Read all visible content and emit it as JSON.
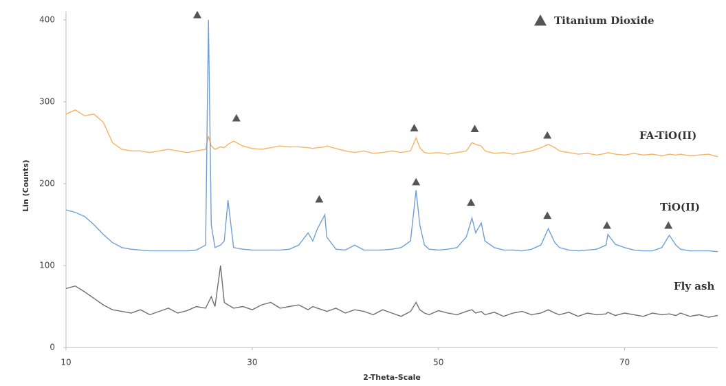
{
  "chart_data": {
    "type": "line",
    "x_label": "2-Theta-Scale",
    "y_label": "Lin (Counts)",
    "x": [
      10,
      11,
      12,
      13,
      14,
      15,
      16,
      17,
      18,
      19,
      20,
      21,
      22,
      23,
      24,
      25,
      25.3,
      25.6,
      26,
      26.6,
      27,
      27.4,
      28,
      29,
      30,
      31,
      32,
      33,
      34,
      35,
      36,
      36.5,
      37,
      37.8,
      38,
      39,
      40,
      41,
      42,
      43,
      44,
      45,
      46,
      47,
      47.6,
      48,
      48.5,
      49,
      50,
      51,
      52,
      53,
      53.6,
      54,
      54.6,
      55,
      56,
      57,
      58,
      59,
      60,
      61,
      61.8,
      62.5,
      63,
      64,
      65,
      66,
      67,
      68,
      68.2,
      69,
      70,
      71,
      72,
      73,
      74,
      74.8,
      75.5,
      76,
      77,
      78,
      79,
      80
    ],
    "series": [
      {
        "name": "FA-TiO(II)",
        "color": "#f5b560",
        "values": [
          285,
          290,
          283,
          285,
          275,
          250,
          242,
          240,
          240,
          238,
          240,
          242,
          240,
          238,
          240,
          242,
          258,
          246,
          242,
          245,
          244,
          248,
          252,
          246,
          243,
          242,
          244,
          246,
          245,
          245,
          244,
          243,
          244,
          245,
          246,
          243,
          240,
          238,
          240,
          237,
          238,
          240,
          238,
          240,
          256,
          244,
          238,
          237,
          238,
          236,
          238,
          240,
          250,
          248,
          246,
          240,
          237,
          238,
          236,
          238,
          240,
          244,
          248,
          244,
          240,
          238,
          236,
          237,
          235,
          237,
          238,
          236,
          235,
          237,
          235,
          236,
          234,
          236,
          235,
          236,
          234,
          235,
          236,
          233
        ]
      },
      {
        "name": "TiO(II)",
        "color": "#6f9fd4",
        "values": [
          168,
          165,
          160,
          150,
          138,
          128,
          122,
          120,
          119,
          118,
          118,
          118,
          118,
          118,
          119,
          125,
          400,
          150,
          122,
          125,
          130,
          180,
          122,
          120,
          119,
          119,
          119,
          119,
          120,
          125,
          140,
          130,
          145,
          162,
          135,
          120,
          119,
          125,
          119,
          119,
          119,
          120,
          122,
          130,
          192,
          150,
          125,
          120,
          119,
          120,
          122,
          135,
          158,
          140,
          152,
          130,
          122,
          119,
          119,
          118,
          120,
          125,
          145,
          128,
          122,
          119,
          118,
          119,
          120,
          125,
          138,
          126,
          122,
          119,
          118,
          118,
          122,
          137,
          125,
          120,
          118,
          118,
          118,
          117
        ]
      },
      {
        "name": "Fly ash",
        "color": "#6e6e6e",
        "values": [
          72,
          75,
          68,
          60,
          52,
          46,
          44,
          42,
          46,
          40,
          44,
          48,
          42,
          45,
          50,
          48,
          55,
          62,
          50,
          100,
          55,
          52,
          48,
          50,
          46,
          52,
          55,
          48,
          50,
          52,
          46,
          50,
          48,
          45,
          44,
          48,
          42,
          46,
          44,
          40,
          46,
          42,
          38,
          44,
          55,
          46,
          42,
          40,
          45,
          42,
          40,
          44,
          46,
          42,
          44,
          40,
          43,
          38,
          42,
          44,
          40,
          42,
          46,
          42,
          40,
          43,
          38,
          42,
          40,
          41,
          43,
          39,
          42,
          40,
          38,
          42,
          40,
          41,
          39,
          42,
          38,
          40,
          37,
          39
        ]
      }
    ],
    "markers": {
      "name": "Titanium Dioxide",
      "color": "#555555",
      "x": [
        24.1,
        28.3,
        47.4,
        53.9,
        61.7,
        37.2,
        47.6,
        53.5,
        61.7,
        68.1,
        74.7
      ],
      "values": [
        406,
        280,
        268,
        267,
        259,
        181,
        202,
        177,
        161,
        149,
        149
      ]
    },
    "xlim": [
      10,
      80
    ],
    "xticks": [
      10,
      30,
      50,
      70
    ],
    "ylim": [
      0,
      410
    ],
    "yticks": [
      0,
      100,
      200,
      300,
      400
    ],
    "grid": false
  }
}
